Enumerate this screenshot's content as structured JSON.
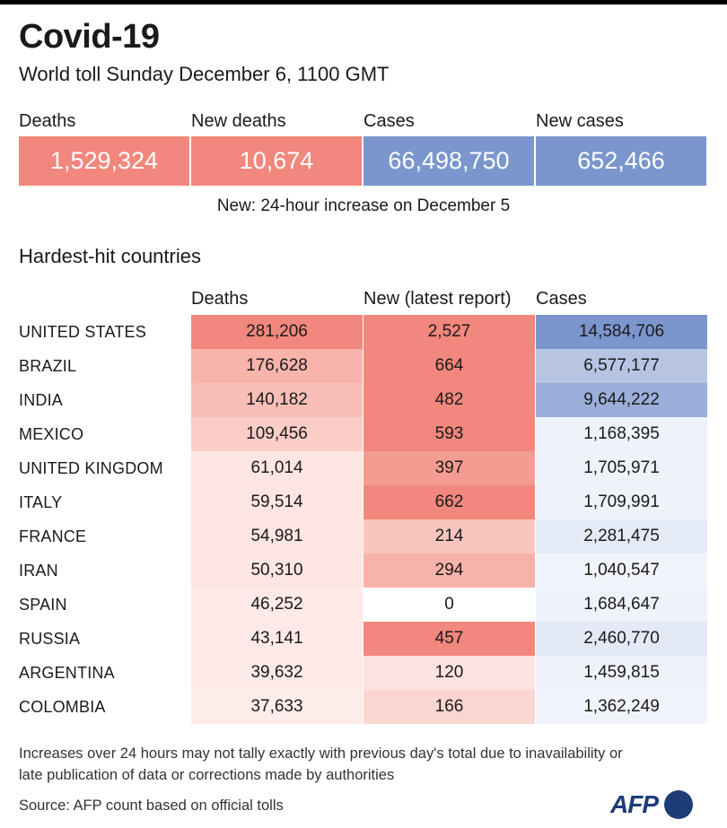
{
  "header": {
    "title": "Covid-19",
    "subtitle": "World toll Sunday December 6, 1100 GMT"
  },
  "summary": [
    {
      "label": "Deaths",
      "value": "1,529,324",
      "color": "#f2877d"
    },
    {
      "label": "New deaths",
      "value": "10,674",
      "color": "#f2877d"
    },
    {
      "label": "Cases",
      "value": "66,498,750",
      "color": "#7b96cc"
    },
    {
      "label": "New cases",
      "value": "652,466",
      "color": "#7b96cc"
    }
  ],
  "new_note": "New: 24-hour increase on December 5",
  "section_title": "Hardest-hit countries",
  "table": {
    "headers": [
      "Deaths",
      "New (latest report)",
      "Cases"
    ],
    "rows": [
      {
        "country": "UNITED STATES",
        "deaths": "281,206",
        "new": "2,527",
        "cases": "14,584,706",
        "c_deaths": "#f2877d",
        "c_new": "#f2877d",
        "c_cases": "#7b96cc"
      },
      {
        "country": "BRAZIL",
        "deaths": "176,628",
        "new": "664",
        "cases": "6,577,177",
        "c_deaths": "#f8b4ab",
        "c_new": "#f2877d",
        "c_cases": "#b7c5e3"
      },
      {
        "country": "INDIA",
        "deaths": "140,182",
        "new": "482",
        "cases": "9,644,222",
        "c_deaths": "#f9bfb7",
        "c_new": "#f2877d",
        "c_cases": "#9aafd9"
      },
      {
        "country": "MEXICO",
        "deaths": "109,456",
        "new": "593",
        "cases": "1,168,395",
        "c_deaths": "#fbcdc6",
        "c_new": "#f2877d",
        "c_cases": "#eef2f9"
      },
      {
        "country": "UNITED KINGDOM",
        "deaths": "61,014",
        "new": "397",
        "cases": "1,705,971",
        "c_deaths": "#fde6e2",
        "c_new": "#f49c92",
        "c_cases": "#eef2f9"
      },
      {
        "country": "ITALY",
        "deaths": "59,514",
        "new": "662",
        "cases": "1,709,991",
        "c_deaths": "#fde6e2",
        "c_new": "#f2877d",
        "c_cases": "#eef2f9"
      },
      {
        "country": "FRANCE",
        "deaths": "54,981",
        "new": "214",
        "cases": "2,281,475",
        "c_deaths": "#fde6e2",
        "c_new": "#f9c5be",
        "c_cases": "#e5ebf6"
      },
      {
        "country": "IRAN",
        "deaths": "50,310",
        "new": "294",
        "cases": "1,040,547",
        "c_deaths": "#fde6e2",
        "c_new": "#f7b2a9",
        "c_cases": "#f1f4fa"
      },
      {
        "country": "SPAIN",
        "deaths": "46,252",
        "new": "0",
        "cases": "1,684,647",
        "c_deaths": "#fde9e6",
        "c_new": "#ffffff",
        "c_cases": "#eef2f9"
      },
      {
        "country": "RUSSIA",
        "deaths": "43,141",
        "new": "457",
        "cases": "2,460,770",
        "c_deaths": "#fdeae7",
        "c_new": "#f2877d",
        "c_cases": "#e3e9f5"
      },
      {
        "country": "ARGENTINA",
        "deaths": "39,632",
        "new": "120",
        "cases": "1,459,815",
        "c_deaths": "#fdeae7",
        "c_new": "#fde3df",
        "c_cases": "#eff2f9"
      },
      {
        "country": "COLOMBIA",
        "deaths": "37,633",
        "new": "166",
        "cases": "1,362,249",
        "c_deaths": "#feece9",
        "c_new": "#fbd6d0",
        "c_cases": "#f0f3fa"
      }
    ]
  },
  "footnote": "Increases over 24 hours may not tally exactly with previous day's total due to inavailability or late publication of data or corrections made by authorities",
  "source": "Source: AFP count based on official tolls",
  "logo": {
    "text": "AFP",
    "icon": "globe-icon",
    "color": "#1d3c78"
  }
}
